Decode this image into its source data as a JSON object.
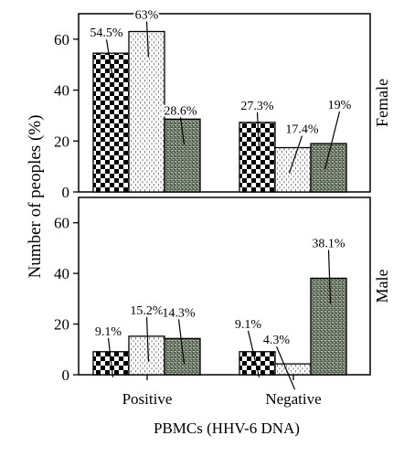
{
  "chart_data": [
    {
      "type": "bar",
      "panel_label": "Female",
      "categories": [
        "Positive",
        "Negative"
      ],
      "series": [
        {
          "key": "s1",
          "values": [
            54.5,
            27.3
          ]
        },
        {
          "key": "s2",
          "values": [
            63,
            17.4
          ]
        },
        {
          "key": "s3",
          "values": [
            28.6,
            19
          ]
        }
      ],
      "data_labels": [
        [
          "54.5%",
          "63%",
          "28.6%"
        ],
        [
          "27.3%",
          "17.4%",
          "19%"
        ]
      ],
      "ylim": [
        0,
        70
      ],
      "yticks": [
        "0",
        "20",
        "40",
        "60"
      ]
    },
    {
      "type": "bar",
      "panel_label": "Male",
      "categories": [
        "Positive",
        "Negative"
      ],
      "series": [
        {
          "key": "s1",
          "values": [
            9.1,
            9.1
          ]
        },
        {
          "key": "s2",
          "values": [
            15.2,
            4.3
          ]
        },
        {
          "key": "s3",
          "values": [
            14.3,
            38.1
          ]
        }
      ],
      "data_labels": [
        [
          "9.1%",
          "15.2%",
          "14.3%"
        ],
        [
          "9.1%",
          "4.3%",
          "38.1%"
        ]
      ],
      "ylim": [
        0,
        70
      ],
      "yticks": [
        "0",
        "20",
        "40",
        "60"
      ]
    }
  ],
  "axes": {
    "ylabel": "Number of peoples (%)",
    "xlabel": "PBMCs (HHV-6 DNA)",
    "xticks": [
      "Positive",
      "Negative"
    ]
  },
  "colors": {
    "s1": "#000000",
    "s2": "#888888",
    "s3": "#5a6b5a"
  }
}
